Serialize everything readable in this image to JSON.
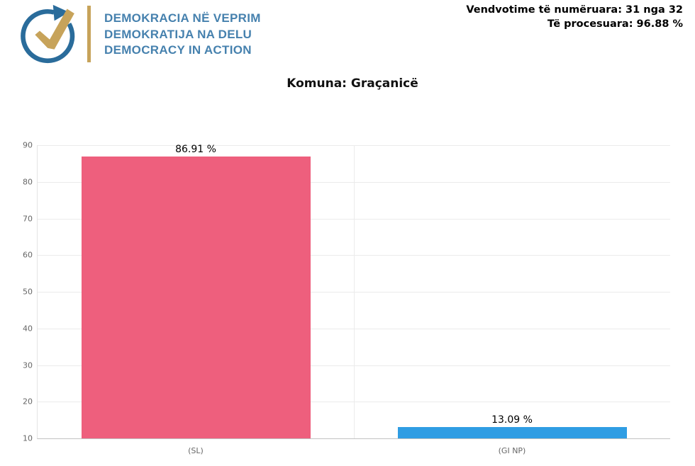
{
  "header": {
    "logo": {
      "lines": [
        "DEMOKRACIA NË VEPRIM",
        "DEMOKRATIJA NA DELU",
        "DEMOCRACY IN ACTION"
      ],
      "text_color": "#4681AE",
      "mark_color": "#2A6C9B",
      "gold_color": "#C7A35A"
    },
    "stats": {
      "line1": "Vendvotime të numëruara: 31 nga 32",
      "line2": "Të procesuara: 96.88 %"
    }
  },
  "title": "Komuna: Graçanicë",
  "chart_data": {
    "type": "bar",
    "title": "Komuna: Graçanicë",
    "categories": [
      "(SL)",
      "(GI NP)"
    ],
    "values": [
      86.91,
      13.09
    ],
    "value_labels": [
      "86.91 %",
      "13.09 %"
    ],
    "bar_colors": [
      "#EE5F7D",
      "#2F9DE3"
    ],
    "ylim": [
      10,
      90
    ],
    "yticks": [
      90,
      80,
      70,
      60,
      50,
      40,
      30,
      20,
      10
    ],
    "grid": true,
    "legend": "none",
    "xlabel": "",
    "ylabel": ""
  }
}
